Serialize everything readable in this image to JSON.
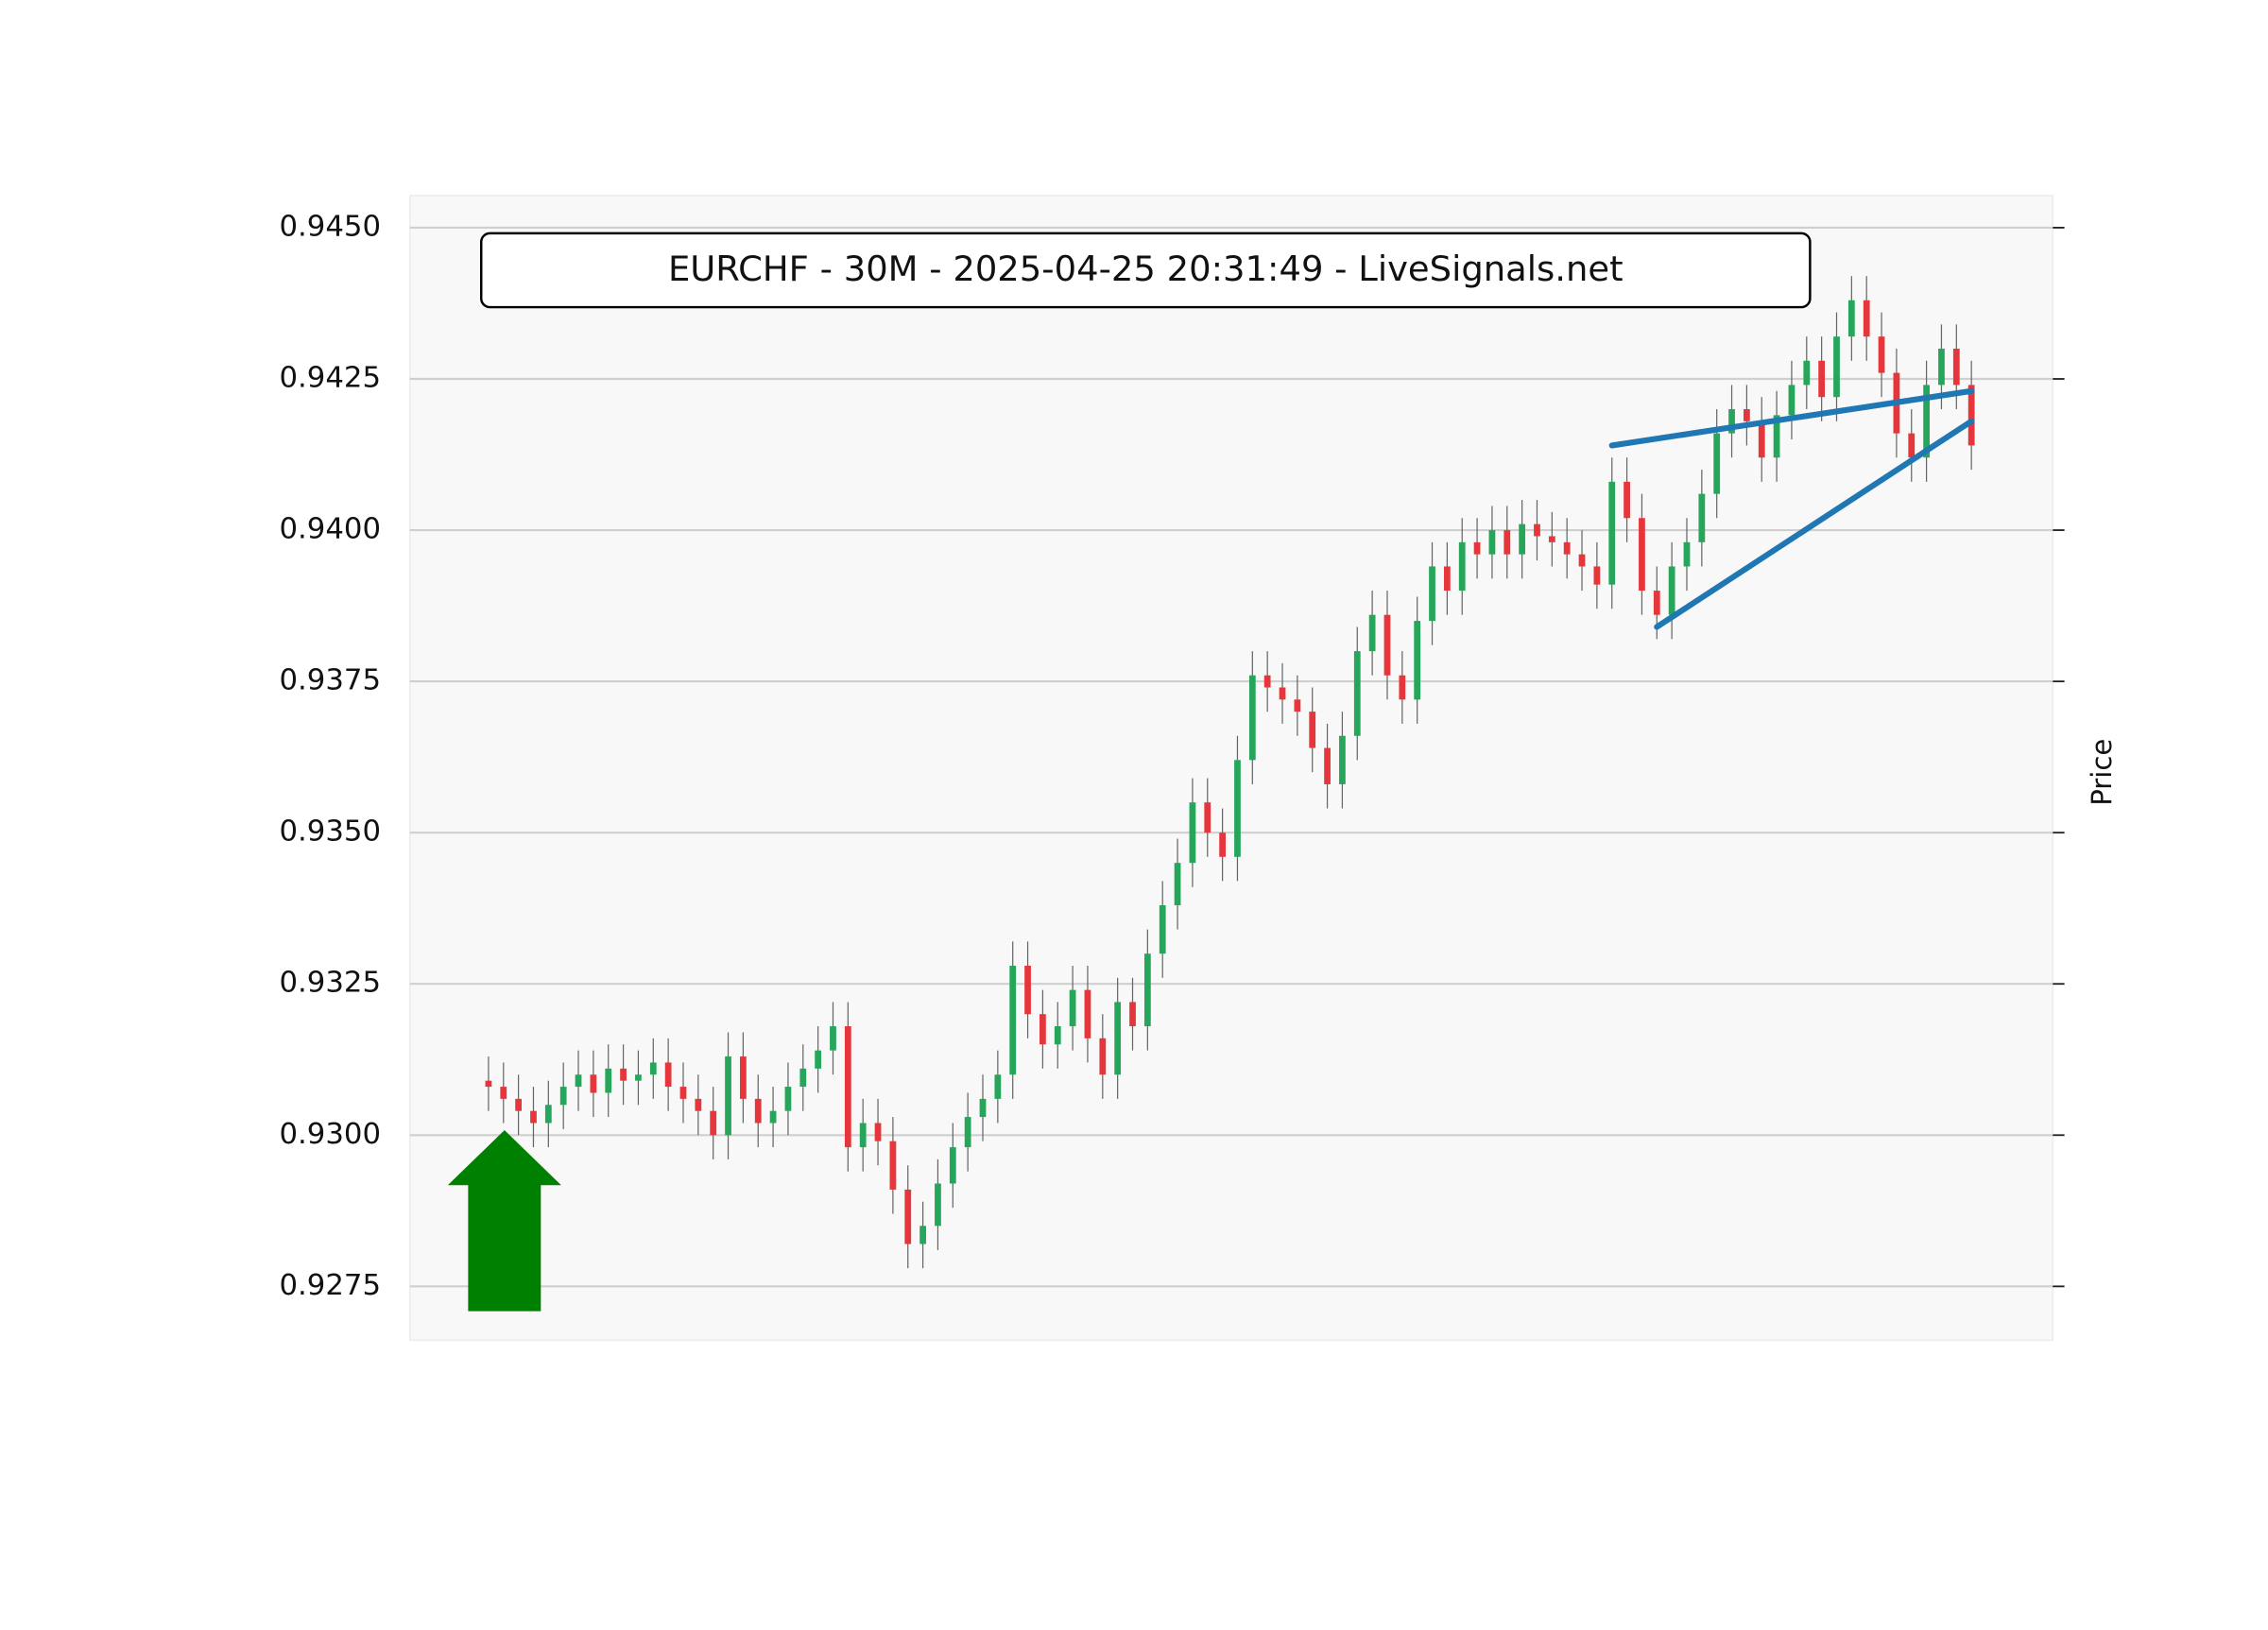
{
  "chart_data": {
    "type": "candlestick",
    "title": "EURCHF - 30M - 2025-04-25 20:31:49 - LiveSignals.net",
    "y_label": "Price",
    "up_color": "#26a65b",
    "down_color": "#e5363b",
    "ylim": [
      0.92661,
      0.94553
    ],
    "yticks": [
      0.9275,
      {
        "value": 0.93,
        "label": "0.9300"
      },
      0.9325,
      {
        "value": 0.935,
        "label": "0.9350"
      },
      0.9375,
      {
        "value": 0.94,
        "label": "0.9400"
      },
      0.9425,
      {
        "value": 0.945,
        "label": "0.9450"
      }
    ],
    "grid": true,
    "open": [
      0.9309,
      0.9308,
      0.9306,
      0.9304,
      0.9302,
      0.9305,
      0.9308,
      0.931,
      0.9307,
      0.9311,
      0.9309,
      0.931,
      0.9312,
      0.9308,
      0.9306,
      0.9304,
      0.93,
      0.9313,
      0.9306,
      0.9302,
      0.9304,
      0.9308,
      0.9311,
      0.9314,
      0.9318,
      0.9298,
      0.9302,
      0.9299,
      0.9291,
      0.9282,
      0.9285,
      0.9292,
      0.9298,
      0.9303,
      0.9306,
      0.931,
      0.9328,
      0.932,
      0.9315,
      0.9318,
      0.9324,
      0.9316,
      0.931,
      0.9322,
      0.9318,
      0.933,
      0.9338,
      0.9345,
      0.9355,
      0.935,
      0.9346,
      0.9362,
      0.9376,
      0.9374,
      0.9372,
      0.937,
      0.9364,
      0.9358,
      0.9366,
      0.938,
      0.9386,
      0.9376,
      0.9372,
      0.9385,
      0.9394,
      0.939,
      0.9398,
      0.9396,
      0.94,
      0.9396,
      0.9401,
      0.9399,
      0.9398,
      0.9396,
      0.9394,
      0.9391,
      0.9408,
      0.9402,
      0.939,
      0.9386,
      0.9394,
      0.9398,
      0.9406,
      0.9416,
      0.942,
      0.9418,
      0.9412,
      0.9419,
      0.9424,
      0.9428,
      0.9422,
      0.9432,
      0.9438,
      0.9432,
      0.9426,
      0.9416,
      0.9412,
      0.9424,
      0.943,
      0.9424
    ],
    "high": [
      0.9313,
      0.9312,
      0.931,
      0.9308,
      0.9309,
      0.9312,
      0.9314,
      0.9314,
      0.9315,
      0.9315,
      0.9314,
      0.9316,
      0.9316,
      0.9312,
      0.931,
      0.9308,
      0.9317,
      0.9317,
      0.931,
      0.9308,
      0.9312,
      0.9315,
      0.9318,
      0.9322,
      0.9322,
      0.9306,
      0.9306,
      0.9303,
      0.9295,
      0.9289,
      0.9296,
      0.9302,
      0.9307,
      0.931,
      0.9314,
      0.9332,
      0.9332,
      0.9324,
      0.9322,
      0.9328,
      0.9328,
      0.932,
      0.9326,
      0.9326,
      0.9334,
      0.9342,
      0.9349,
      0.9359,
      0.9359,
      0.9354,
      0.9366,
      0.938,
      0.938,
      0.9378,
      0.9376,
      0.9374,
      0.9368,
      0.937,
      0.9384,
      0.939,
      0.939,
      0.938,
      0.9389,
      0.9398,
      0.9398,
      0.9402,
      0.9402,
      0.9404,
      0.9404,
      0.9405,
      0.9405,
      0.9403,
      0.9402,
      0.94,
      0.9398,
      0.9412,
      0.9412,
      0.9406,
      0.9394,
      0.9398,
      0.9402,
      0.941,
      0.942,
      0.9424,
      0.9424,
      0.9422,
      0.9423,
      0.9428,
      0.9432,
      0.9432,
      0.9436,
      0.9442,
      0.9442,
      0.9436,
      0.943,
      0.942,
      0.9428,
      0.9434,
      0.9434,
      0.9428
    ],
    "low": [
      0.9304,
      0.9302,
      0.93,
      0.9298,
      0.9298,
      0.9301,
      0.9304,
      0.9303,
      0.9303,
      0.9305,
      0.9305,
      0.9306,
      0.9304,
      0.9302,
      0.93,
      0.9296,
      0.9296,
      0.9302,
      0.9298,
      0.9298,
      0.93,
      0.9304,
      0.9307,
      0.931,
      0.9294,
      0.9294,
      0.9295,
      0.9287,
      0.9278,
      0.9278,
      0.9281,
      0.9288,
      0.9294,
      0.9299,
      0.9302,
      0.9306,
      0.9316,
      0.9311,
      0.9311,
      0.9314,
      0.9312,
      0.9306,
      0.9306,
      0.9314,
      0.9314,
      0.9326,
      0.9334,
      0.9341,
      0.9346,
      0.9342,
      0.9342,
      0.9358,
      0.937,
      0.9368,
      0.9366,
      0.936,
      0.9354,
      0.9354,
      0.9362,
      0.9376,
      0.9372,
      0.9368,
      0.9368,
      0.9381,
      0.9386,
      0.9386,
      0.9392,
      0.9392,
      0.9392,
      0.9392,
      0.9395,
      0.9394,
      0.9392,
      0.939,
      0.9387,
      0.9387,
      0.9398,
      0.9386,
      0.9382,
      0.9382,
      0.939,
      0.9394,
      0.9402,
      0.9412,
      0.9414,
      0.9408,
      0.9408,
      0.9415,
      0.942,
      0.9418,
      0.9418,
      0.9428,
      0.9428,
      0.9422,
      0.9412,
      0.9408,
      0.9408,
      0.942,
      0.942,
      0.941
    ],
    "close": [
      0.9308,
      0.9306,
      0.9304,
      0.9302,
      0.9305,
      0.9308,
      0.931,
      0.9307,
      0.9311,
      0.9309,
      0.931,
      0.9312,
      0.9308,
      0.9306,
      0.9304,
      0.93,
      0.9313,
      0.9306,
      0.9302,
      0.9304,
      0.9308,
      0.9311,
      0.9314,
      0.9318,
      0.9298,
      0.9302,
      0.9299,
      0.9291,
      0.9282,
      0.9285,
      0.9292,
      0.9298,
      0.9303,
      0.9306,
      0.931,
      0.9328,
      0.932,
      0.9315,
      0.9318,
      0.9324,
      0.9316,
      0.931,
      0.9322,
      0.9318,
      0.933,
      0.9338,
      0.9345,
      0.9355,
      0.935,
      0.9346,
      0.9362,
      0.9376,
      0.9374,
      0.9372,
      0.937,
      0.9364,
      0.9358,
      0.9366,
      0.938,
      0.9386,
      0.9376,
      0.9372,
      0.9385,
      0.9394,
      0.939,
      0.9398,
      0.9396,
      0.94,
      0.9396,
      0.9401,
      0.9399,
      0.9398,
      0.9396,
      0.9394,
      0.9391,
      0.9408,
      0.9402,
      0.939,
      0.9386,
      0.9394,
      0.9398,
      0.9406,
      0.9416,
      0.942,
      0.9418,
      0.9412,
      0.9419,
      0.9424,
      0.9428,
      0.9422,
      0.9432,
      0.9438,
      0.9432,
      0.9426,
      0.9416,
      0.9412,
      0.9424,
      0.943,
      0.9424,
      0.9414
    ],
    "trendlines": [
      {
        "color": "#1f77b4",
        "x": [
          75,
          99
        ],
        "y": [
          0.9414,
          0.9423
        ]
      },
      {
        "color": "#1f77b4",
        "x": [
          78,
          99
        ],
        "y": [
          0.9384,
          0.9418
        ]
      }
    ]
  }
}
